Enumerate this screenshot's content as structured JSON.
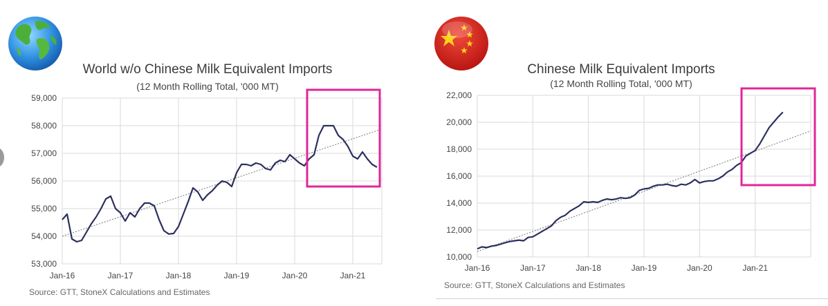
{
  "colors": {
    "series": "#2b2f5e",
    "trend": "#8a8a8a",
    "highlight": "#e0269a",
    "grid": "#d9d9d9"
  },
  "icons": {
    "left": "globe-icon",
    "right": "china-flag-icon"
  },
  "chart_data": [
    {
      "type": "line",
      "title": "World w/o Chinese Milk Equivalent Imports",
      "subtitle": "(12 Month Rolling Total, '000 MT)",
      "source": "Source: GTT, StoneX Calculations and Estimates",
      "x_tick_labels": [
        "Jan-16",
        "Jan-17",
        "Jan-18",
        "Jan-19",
        "Jan-20",
        "Jan-21"
      ],
      "y_tick_labels": [
        "53,000",
        "54,000",
        "55,000",
        "56,000",
        "57,000",
        "58,000",
        "59,000"
      ],
      "xlim": [
        0,
        66
      ],
      "ylim": [
        53000,
        59000
      ],
      "grid": true,
      "series": [
        {
          "x": [
            0,
            1,
            2,
            3,
            4,
            5,
            6,
            7,
            8,
            9,
            10,
            11,
            12,
            13,
            14,
            15,
            16,
            17,
            18,
            19,
            20,
            21,
            22,
            23,
            24,
            25,
            26,
            27,
            28,
            29,
            30,
            31,
            32,
            33,
            34,
            35,
            36,
            37,
            38,
            39,
            40,
            41,
            42,
            43,
            44,
            45,
            46,
            47,
            48,
            49,
            50,
            51,
            52,
            53,
            54,
            55,
            56,
            57,
            58,
            59,
            60,
            61,
            62,
            63,
            64,
            65
          ],
          "y": [
            54600,
            54800,
            53900,
            53800,
            53850,
            54150,
            54450,
            54700,
            55000,
            55350,
            55450,
            55000,
            54850,
            54550,
            54850,
            54700,
            55000,
            55200,
            55200,
            55100,
            54600,
            54200,
            54080,
            54100,
            54350,
            54800,
            55250,
            55750,
            55600,
            55300,
            55500,
            55650,
            55850,
            56000,
            55950,
            55800,
            56300,
            56600,
            56600,
            56550,
            56650,
            56600,
            56450,
            56400,
            56650,
            56750,
            56700,
            56950,
            56800,
            56650,
            56550,
            56800,
            56950,
            57650,
            58000,
            58000,
            58000,
            57650,
            57500,
            57250,
            56900,
            56800,
            57050,
            56800,
            56600,
            56500
          ]
        }
      ],
      "trend": {
        "x": [
          0,
          66
        ],
        "y": [
          54000,
          57880
        ]
      },
      "highlight_box": "Jan-20 to end"
    },
    {
      "type": "line",
      "title": "Chinese Milk Equivalent Imports",
      "subtitle": "(12 Month Rolling Total, '000 MT)",
      "source": "Source: GTT, StoneX Calculations and Estimates",
      "x_tick_labels": [
        "Jan-16",
        "Jan-17",
        "Jan-18",
        "Jan-19",
        "Jan-20",
        "Jan-21"
      ],
      "y_tick_labels": [
        "10,000",
        "12,000",
        "14,000",
        "16,000",
        "18,000",
        "20,000",
        "22,000"
      ],
      "xlim": [
        0,
        72
      ],
      "ylim": [
        10000,
        22000
      ],
      "grid": true,
      "series": [
        {
          "x": [
            0,
            1,
            2,
            3,
            4,
            5,
            6,
            7,
            8,
            9,
            10,
            11,
            12,
            13,
            14,
            15,
            16,
            17,
            18,
            19,
            20,
            21,
            22,
            23,
            24,
            25,
            26,
            27,
            28,
            29,
            30,
            31,
            32,
            33,
            34,
            35,
            36,
            37,
            38,
            39,
            40,
            41,
            42,
            43,
            44,
            45,
            46,
            47,
            48,
            49,
            50,
            51,
            52,
            53,
            54,
            55,
            56,
            57,
            58,
            59,
            60,
            61,
            62,
            63,
            64,
            65,
            66
          ],
          "y": [
            10600,
            10750,
            10700,
            10800,
            10850,
            10950,
            11050,
            11150,
            11200,
            11250,
            11200,
            11450,
            11500,
            11700,
            11900,
            12100,
            12300,
            12700,
            12950,
            13100,
            13400,
            13600,
            13800,
            14100,
            14050,
            14100,
            14050,
            14200,
            14300,
            14250,
            14300,
            14400,
            14350,
            14400,
            14600,
            14950,
            15050,
            15100,
            15250,
            15350,
            15350,
            15400,
            15300,
            15250,
            15400,
            15350,
            15500,
            15750,
            15500,
            15600,
            15650,
            15650,
            15800,
            16000,
            16300,
            16500,
            16800,
            17000,
            17500,
            17700,
            17900,
            18400,
            19000,
            19600,
            20000,
            20400,
            20750
          ]
        }
      ],
      "trend": {
        "x": [
          0,
          72
        ],
        "y": [
          10400,
          19350
        ]
      },
      "highlight_box": "Nov-20 to end"
    }
  ]
}
